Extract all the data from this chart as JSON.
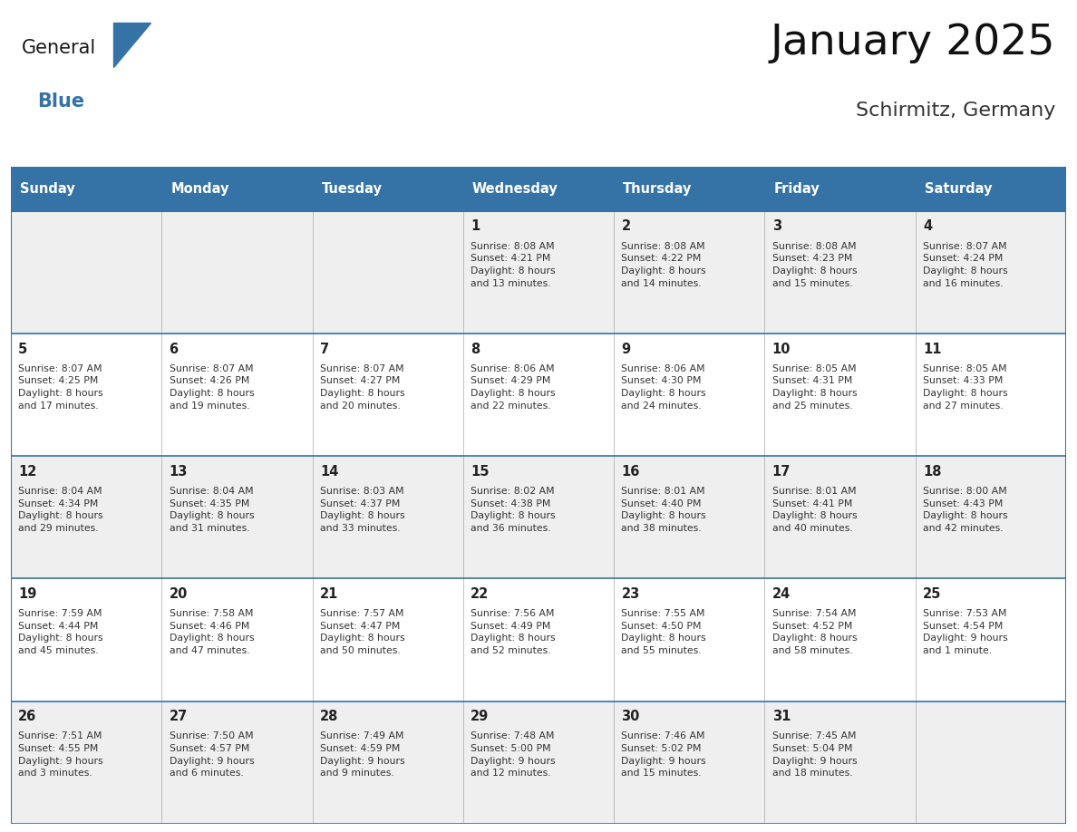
{
  "title": "January 2025",
  "subtitle": "Schirmitz, Germany",
  "header_color": "#3572A5",
  "header_text_color": "#FFFFFF",
  "cell_bg_even": "#EFEFEF",
  "cell_bg_odd": "#FFFFFF",
  "title_color": "#111111",
  "subtitle_color": "#333333",
  "day_number_color": "#222222",
  "cell_text_color": "#333333",
  "grid_line_color": "#3572A5",
  "logo_general_color": "#1a1a1a",
  "logo_blue_color": "#3572A5",
  "day_names": [
    "Sunday",
    "Monday",
    "Tuesday",
    "Wednesday",
    "Thursday",
    "Friday",
    "Saturday"
  ],
  "weeks": [
    [
      {
        "day": 0,
        "info": ""
      },
      {
        "day": 0,
        "info": ""
      },
      {
        "day": 0,
        "info": ""
      },
      {
        "day": 1,
        "info": "Sunrise: 8:08 AM\nSunset: 4:21 PM\nDaylight: 8 hours\nand 13 minutes."
      },
      {
        "day": 2,
        "info": "Sunrise: 8:08 AM\nSunset: 4:22 PM\nDaylight: 8 hours\nand 14 minutes."
      },
      {
        "day": 3,
        "info": "Sunrise: 8:08 AM\nSunset: 4:23 PM\nDaylight: 8 hours\nand 15 minutes."
      },
      {
        "day": 4,
        "info": "Sunrise: 8:07 AM\nSunset: 4:24 PM\nDaylight: 8 hours\nand 16 minutes."
      }
    ],
    [
      {
        "day": 5,
        "info": "Sunrise: 8:07 AM\nSunset: 4:25 PM\nDaylight: 8 hours\nand 17 minutes."
      },
      {
        "day": 6,
        "info": "Sunrise: 8:07 AM\nSunset: 4:26 PM\nDaylight: 8 hours\nand 19 minutes."
      },
      {
        "day": 7,
        "info": "Sunrise: 8:07 AM\nSunset: 4:27 PM\nDaylight: 8 hours\nand 20 minutes."
      },
      {
        "day": 8,
        "info": "Sunrise: 8:06 AM\nSunset: 4:29 PM\nDaylight: 8 hours\nand 22 minutes."
      },
      {
        "day": 9,
        "info": "Sunrise: 8:06 AM\nSunset: 4:30 PM\nDaylight: 8 hours\nand 24 minutes."
      },
      {
        "day": 10,
        "info": "Sunrise: 8:05 AM\nSunset: 4:31 PM\nDaylight: 8 hours\nand 25 minutes."
      },
      {
        "day": 11,
        "info": "Sunrise: 8:05 AM\nSunset: 4:33 PM\nDaylight: 8 hours\nand 27 minutes."
      }
    ],
    [
      {
        "day": 12,
        "info": "Sunrise: 8:04 AM\nSunset: 4:34 PM\nDaylight: 8 hours\nand 29 minutes."
      },
      {
        "day": 13,
        "info": "Sunrise: 8:04 AM\nSunset: 4:35 PM\nDaylight: 8 hours\nand 31 minutes."
      },
      {
        "day": 14,
        "info": "Sunrise: 8:03 AM\nSunset: 4:37 PM\nDaylight: 8 hours\nand 33 minutes."
      },
      {
        "day": 15,
        "info": "Sunrise: 8:02 AM\nSunset: 4:38 PM\nDaylight: 8 hours\nand 36 minutes."
      },
      {
        "day": 16,
        "info": "Sunrise: 8:01 AM\nSunset: 4:40 PM\nDaylight: 8 hours\nand 38 minutes."
      },
      {
        "day": 17,
        "info": "Sunrise: 8:01 AM\nSunset: 4:41 PM\nDaylight: 8 hours\nand 40 minutes."
      },
      {
        "day": 18,
        "info": "Sunrise: 8:00 AM\nSunset: 4:43 PM\nDaylight: 8 hours\nand 42 minutes."
      }
    ],
    [
      {
        "day": 19,
        "info": "Sunrise: 7:59 AM\nSunset: 4:44 PM\nDaylight: 8 hours\nand 45 minutes."
      },
      {
        "day": 20,
        "info": "Sunrise: 7:58 AM\nSunset: 4:46 PM\nDaylight: 8 hours\nand 47 minutes."
      },
      {
        "day": 21,
        "info": "Sunrise: 7:57 AM\nSunset: 4:47 PM\nDaylight: 8 hours\nand 50 minutes."
      },
      {
        "day": 22,
        "info": "Sunrise: 7:56 AM\nSunset: 4:49 PM\nDaylight: 8 hours\nand 52 minutes."
      },
      {
        "day": 23,
        "info": "Sunrise: 7:55 AM\nSunset: 4:50 PM\nDaylight: 8 hours\nand 55 minutes."
      },
      {
        "day": 24,
        "info": "Sunrise: 7:54 AM\nSunset: 4:52 PM\nDaylight: 8 hours\nand 58 minutes."
      },
      {
        "day": 25,
        "info": "Sunrise: 7:53 AM\nSunset: 4:54 PM\nDaylight: 9 hours\nand 1 minute."
      }
    ],
    [
      {
        "day": 26,
        "info": "Sunrise: 7:51 AM\nSunset: 4:55 PM\nDaylight: 9 hours\nand 3 minutes."
      },
      {
        "day": 27,
        "info": "Sunrise: 7:50 AM\nSunset: 4:57 PM\nDaylight: 9 hours\nand 6 minutes."
      },
      {
        "day": 28,
        "info": "Sunrise: 7:49 AM\nSunset: 4:59 PM\nDaylight: 9 hours\nand 9 minutes."
      },
      {
        "day": 29,
        "info": "Sunrise: 7:48 AM\nSunset: 5:00 PM\nDaylight: 9 hours\nand 12 minutes."
      },
      {
        "day": 30,
        "info": "Sunrise: 7:46 AM\nSunset: 5:02 PM\nDaylight: 9 hours\nand 15 minutes."
      },
      {
        "day": 31,
        "info": "Sunrise: 7:45 AM\nSunset: 5:04 PM\nDaylight: 9 hours\nand 18 minutes."
      },
      {
        "day": 0,
        "info": ""
      }
    ]
  ]
}
